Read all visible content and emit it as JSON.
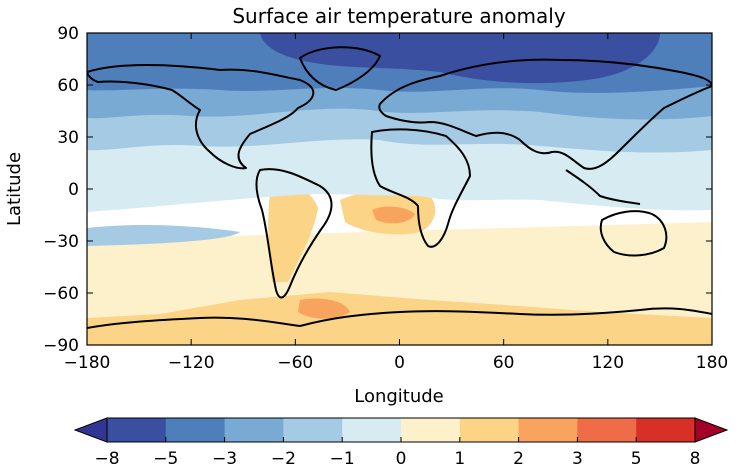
{
  "chart_data": {
    "type": "heatmap",
    "title": "Surface air temperature anomaly",
    "xlabel": "Longitude",
    "ylabel": "Latitude",
    "xlim": [
      -180,
      180
    ],
    "ylim": [
      -90,
      90
    ],
    "x_ticks": [
      "−180",
      "−120",
      "−60",
      "0",
      "60",
      "120",
      "180"
    ],
    "y_ticks": [
      "90",
      "60",
      "30",
      "0",
      "−30",
      "−60",
      "−90"
    ],
    "colorbar": {
      "orientation": "horizontal",
      "extend": "both",
      "labels": [
        "−8",
        "−5",
        "−3",
        "−2",
        "−1",
        "0",
        "1",
        "2",
        "3",
        "5",
        "8"
      ],
      "under_color": "#313695",
      "over_color": "#a50026",
      "colors": [
        "#3a4fa0",
        "#4f7fbb",
        "#78aad4",
        "#a4cbe3",
        "#d6ebf2",
        "#fdf1cc",
        "#fcd487",
        "#f8a45f",
        "#ee6c48",
        "#d73027"
      ]
    },
    "grid": false
  }
}
